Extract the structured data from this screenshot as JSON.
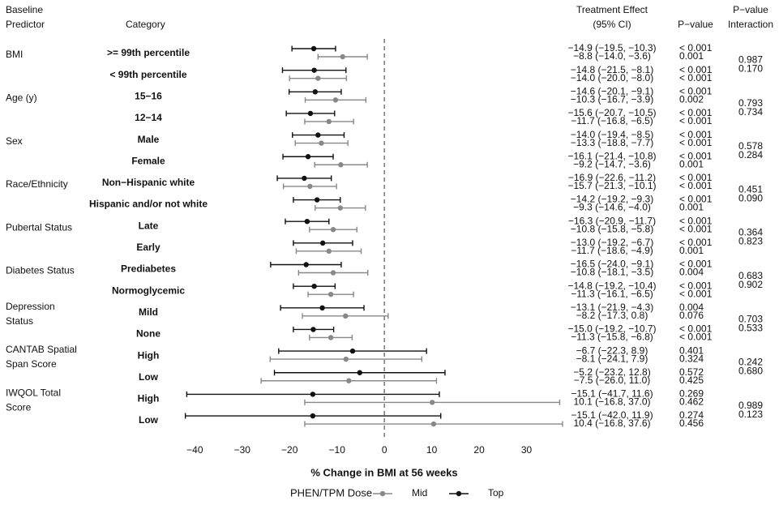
{
  "chart_data": {
    "type": "forest",
    "headers": {
      "predictor": "Baseline\nPredictor",
      "category": "Category",
      "effect": "Treatment Effect\n(95% CI)",
      "p_value": "P−value",
      "interaction": "P−value\nInteraction"
    },
    "groups": [
      "BMI",
      "Age (y)",
      "Sex",
      "Race/Ethnicity",
      "Pubertal Status",
      "Diabetes Status",
      "Depression\nStatus",
      "CANTAB Spatial\nSpan Score",
      "IWQOL Total\nScore"
    ],
    "categories": [
      ">= 99th percentile",
      "< 99th percentile",
      "15−16",
      "12−14",
      "Male",
      "Female",
      "Non−Hispanic white",
      "Hispanic and/or not white",
      "Late",
      "Early",
      "Prediabetes",
      "Normoglycemic",
      "Mild",
      "None",
      "High",
      "Low",
      "High",
      "Low"
    ],
    "x_label": "% Change in BMI at 56 weeks",
    "legend_title": "PHEN/TPM Dose",
    "xlim": [
      -45.7,
      40
    ],
    "xticks": [
      {
        "value": -40,
        "label": "−40"
      },
      {
        "value": -30,
        "label": "−30"
      },
      {
        "value": -20,
        "label": "−20"
      },
      {
        "value": -10,
        "label": "−10"
      },
      0,
      10,
      20,
      30
    ],
    "reference_line": 0,
    "series": [
      {
        "name": "Mid",
        "color": "#888888",
        "values": [
          -8.8,
          -14.0,
          -10.3,
          -11.7,
          -13.3,
          -9.2,
          -15.7,
          -9.3,
          -10.8,
          -11.7,
          -10.8,
          -11.3,
          -8.2,
          -11.3,
          -8.1,
          -7.5,
          10.1,
          10.4
        ],
        "lower": [
          -14.0,
          -20.0,
          -16.7,
          -16.8,
          -18.8,
          -14.7,
          -21.3,
          -14.6,
          -15.8,
          -18.6,
          -18.1,
          -16.1,
          -17.3,
          -15.8,
          -24.1,
          -26.0,
          -16.8,
          -16.8
        ],
        "upper": [
          -3.6,
          -8.0,
          -3.9,
          -6.5,
          -7.7,
          -3.6,
          -10.1,
          -4.0,
          -5.8,
          -4.9,
          -3.5,
          -6.5,
          0.8,
          -6.8,
          7.9,
          11.0,
          37.0,
          37.6
        ],
        "effect_labels": [
          "−8.8 (−14.0, −3.6)",
          "−14.0 (−20.0, −8.0)",
          "−10.3 (−16.7, −3.9)",
          "−11.7 (−16.8, −6.5)",
          "−13.3 (−18.8, −7.7)",
          "−9.2 (−14.7, −3.6)",
          "−15.7 (−21.3, −10.1)",
          "−9.3 (−14.6, −4.0)",
          "−10.8 (−15.8, −5.8)",
          "−11.7 (−18.6, −4.9)",
          "−10.8 (−18.1, −3.5)",
          "−11.3 (−16.1, −6.5)",
          "−8.2 (−17.3, 0.8)",
          "−11.3 (−15.8, −6.8)",
          "−8.1 (−24.1, 7.9)",
          "−7.5 (−26.0, 11.0)",
          "10.1 (−16.8, 37.0)",
          "10.4 (−16.8, 37.6)"
        ],
        "p_labels": [
          "0.001",
          "< 0.001",
          "0.002",
          "< 0.001",
          "< 0.001",
          "0.001",
          "< 0.001",
          "0.001",
          "< 0.001",
          "0.001",
          "0.004",
          "< 0.001",
          "0.076",
          "< 0.001",
          "0.324",
          "0.425",
          "0.462",
          "0.456"
        ],
        "interaction_labels": [
          "0.170",
          "0.734",
          "0.284",
          "0.090",
          "0.823",
          "0.902",
          "0.533",
          "0.680",
          "0.123"
        ]
      },
      {
        "name": "Top",
        "color": "#111111",
        "values": [
          -14.9,
          -14.8,
          -14.6,
          -15.6,
          -14.0,
          -16.1,
          -16.9,
          -14.2,
          -16.3,
          -13.0,
          -16.5,
          -14.8,
          -13.1,
          -15.0,
          -6.7,
          -5.2,
          -15.1,
          -15.1
        ],
        "lower": [
          -19.5,
          -21.5,
          -20.1,
          -20.7,
          -19.4,
          -21.4,
          -22.6,
          -19.2,
          -20.9,
          -19.2,
          -24.0,
          -19.2,
          -21.9,
          -19.2,
          -22.3,
          -23.2,
          -41.7,
          -42.0
        ],
        "upper": [
          -10.3,
          -8.1,
          -9.1,
          -10.5,
          -8.5,
          -10.8,
          -11.2,
          -9.3,
          -11.7,
          -6.7,
          -9.1,
          -10.4,
          -4.3,
          -10.7,
          8.9,
          12.8,
          11.6,
          11.9
        ],
        "effect_labels": [
          "−14.9 (−19.5, −10.3)",
          "−14.8 (−21.5, −8.1)",
          "−14.6 (−20.1, −9.1)",
          "−15.6 (−20.7, −10.5)",
          "−14.0 (−19.4, −8.5)",
          "−16.1 (−21.4, −10.8)",
          "−16.9 (−22.6, −11.2)",
          "−14.2 (−19.2, −9.3)",
          "−16.3 (−20.9, −11.7)",
          "−13.0 (−19.2, −6.7)",
          "−16.5 (−24.0, −9.1)",
          "−14.8 (−19.2, −10.4)",
          "−13.1 (−21.9, −4.3)",
          "−15.0 (−19.2, −10.7)",
          "−6.7 (−22.3, 8.9)",
          "−5.2 (−23.2, 12.8)",
          "−15.1 (−41.7, 11.6)",
          "−15.1 (−42.0, 11.9)"
        ],
        "p_labels": [
          "< 0.001",
          "< 0.001",
          "< 0.001",
          "< 0.001",
          "< 0.001",
          "< 0.001",
          "< 0.001",
          "< 0.001",
          "< 0.001",
          "< 0.001",
          "< 0.001",
          "< 0.001",
          "0.004",
          "< 0.001",
          "0.401",
          "0.572",
          "0.269",
          "0.274"
        ],
        "interaction_labels": [
          "0.987",
          "0.793",
          "0.578",
          "0.451",
          "0.364",
          "0.683",
          "0.703",
          "0.242",
          "0.989"
        ]
      }
    ]
  }
}
